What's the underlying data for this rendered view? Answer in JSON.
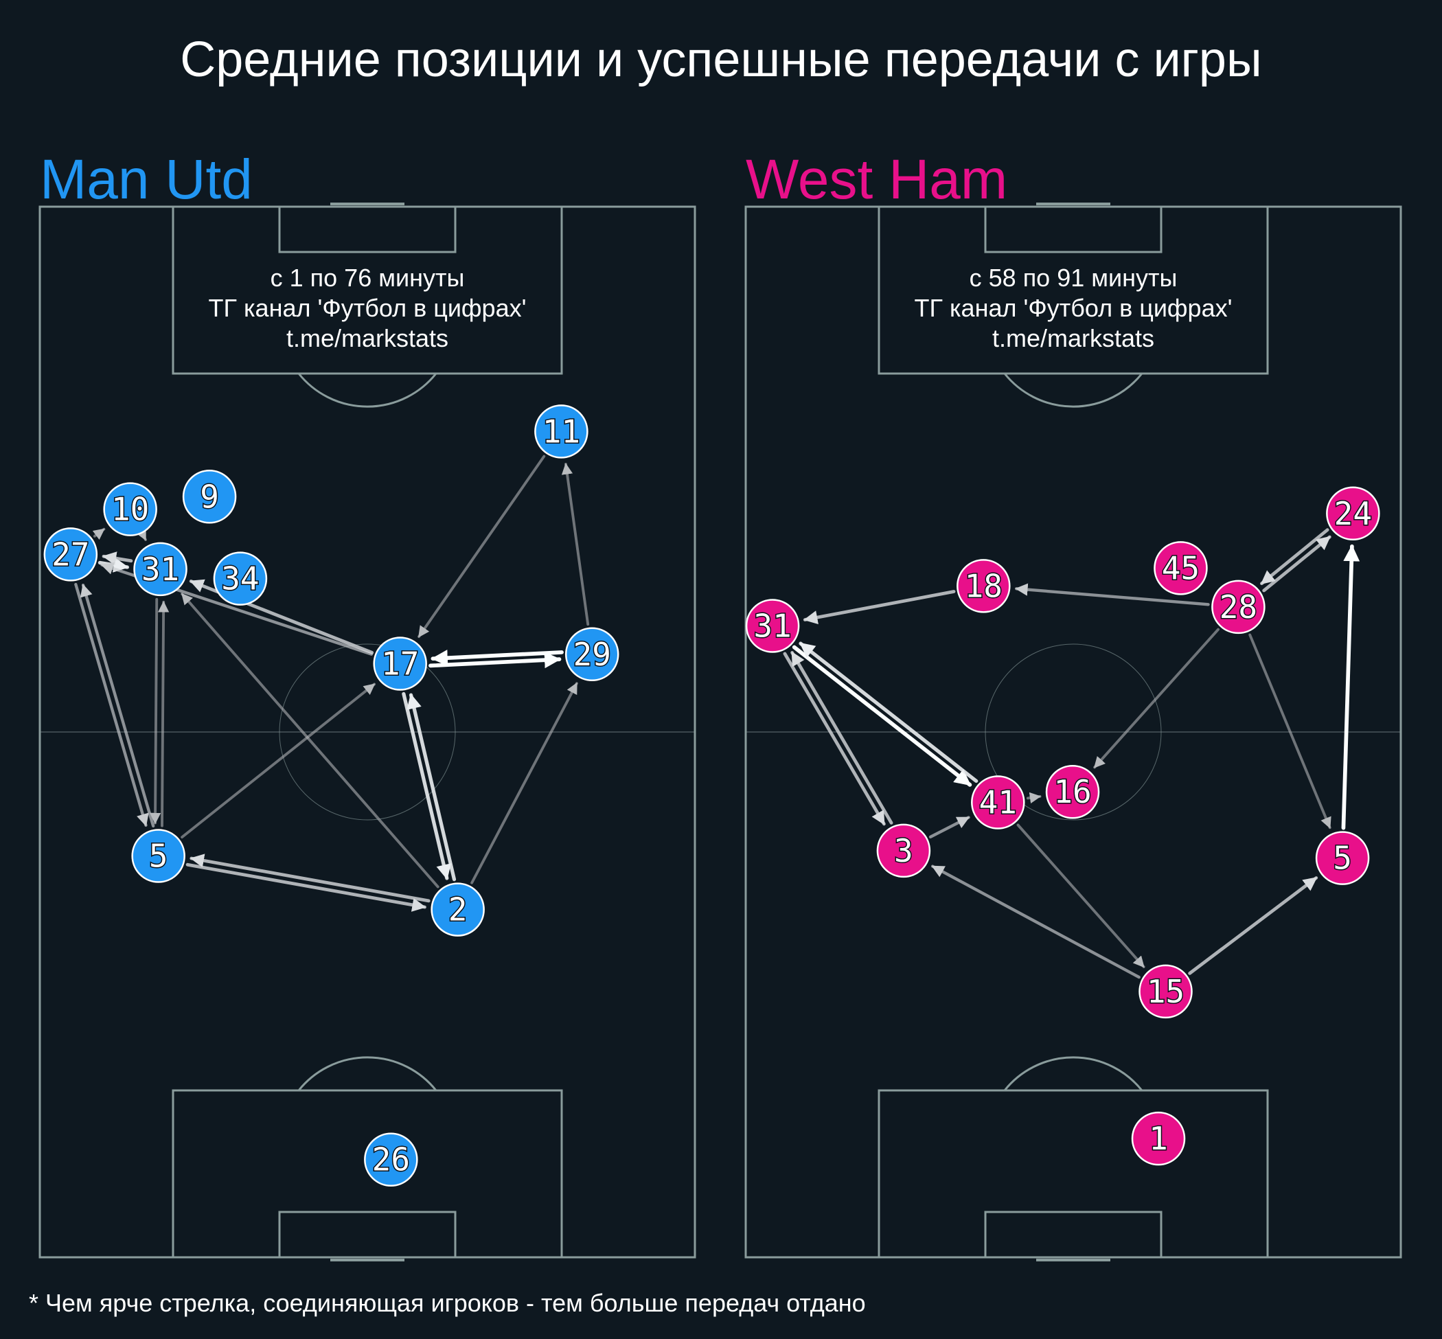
{
  "title": "Средние позиции и успешные передачи с игры",
  "footnote": "* Чем ярче стрелка, соединяющая игроков - тем больше передач отдано",
  "colors": {
    "background": "#0e1820",
    "pitch_lines": "#8a9c9c",
    "home": "#2196f3",
    "away": "#e8108a"
  },
  "teams": [
    {
      "name": "Man Utd",
      "color": "#2196f3",
      "info": [
        "с 1 по 76 минуты",
        "ТГ канал 'Футбол в цифрах'",
        "t.me/markstats"
      ],
      "players": [
        {
          "num": "10",
          "x": 13.8,
          "y": 28.8
        },
        {
          "num": "9",
          "x": 25.9,
          "y": 27.6
        },
        {
          "num": "11",
          "x": 79.6,
          "y": 21.4
        },
        {
          "num": "27",
          "x": 4.7,
          "y": 33.1
        },
        {
          "num": "31",
          "x": 18.4,
          "y": 34.5
        },
        {
          "num": "34",
          "x": 30.6,
          "y": 35.4
        },
        {
          "num": "17",
          "x": 55.0,
          "y": 43.5
        },
        {
          "num": "29",
          "x": 84.3,
          "y": 42.6
        },
        {
          "num": "5",
          "x": 18.1,
          "y": 61.8
        },
        {
          "num": "2",
          "x": 63.8,
          "y": 66.9
        },
        {
          "num": "26",
          "x": 53.6,
          "y": 90.7
        }
      ],
      "passes": [
        {
          "from": "27",
          "to": "10",
          "count": 2
        },
        {
          "from": "10",
          "to": "31",
          "count": 2
        },
        {
          "from": "27",
          "to": "31",
          "count": 5
        },
        {
          "from": "31",
          "to": "27",
          "count": 4
        },
        {
          "from": "17",
          "to": "27",
          "count": 3
        },
        {
          "from": "17",
          "to": "31",
          "count": 4
        },
        {
          "from": "27",
          "to": "5",
          "count": 3
        },
        {
          "from": "5",
          "to": "27",
          "count": 3
        },
        {
          "from": "5",
          "to": "31",
          "count": 2
        },
        {
          "from": "31",
          "to": "5",
          "count": 2
        },
        {
          "from": "5",
          "to": "17",
          "count": 2
        },
        {
          "from": "2",
          "to": "31",
          "count": 2
        },
        {
          "from": "5",
          "to": "2",
          "count": 4
        },
        {
          "from": "2",
          "to": "5",
          "count": 4
        },
        {
          "from": "2",
          "to": "17",
          "count": 5
        },
        {
          "from": "17",
          "to": "2",
          "count": 5
        },
        {
          "from": "2",
          "to": "29",
          "count": 2
        },
        {
          "from": "11",
          "to": "17",
          "count": 2
        },
        {
          "from": "29",
          "to": "11",
          "count": 2
        },
        {
          "from": "17",
          "to": "29",
          "count": 6
        },
        {
          "from": "29",
          "to": "17",
          "count": 6
        }
      ]
    },
    {
      "name": "West Ham",
      "color": "#e8108a",
      "info": [
        "с 58 по 91 минуты",
        "ТГ канал 'Футбол в цифрах'",
        "t.me/markstats"
      ],
      "players": [
        {
          "num": "24",
          "x": 92.7,
          "y": 29.2
        },
        {
          "num": "45",
          "x": 66.4,
          "y": 34.4
        },
        {
          "num": "18",
          "x": 36.3,
          "y": 36.1
        },
        {
          "num": "28",
          "x": 75.2,
          "y": 38.1
        },
        {
          "num": "31",
          "x": 4.1,
          "y": 39.9
        },
        {
          "num": "16",
          "x": 49.9,
          "y": 55.7
        },
        {
          "num": "41",
          "x": 38.5,
          "y": 56.7
        },
        {
          "num": "3",
          "x": 24.1,
          "y": 61.3
        },
        {
          "num": "5",
          "x": 91.1,
          "y": 62.0
        },
        {
          "num": "15",
          "x": 64.1,
          "y": 74.7
        },
        {
          "num": "1",
          "x": 63.0,
          "y": 88.7
        }
      ],
      "passes": [
        {
          "from": "28",
          "to": "24",
          "count": 4
        },
        {
          "from": "24",
          "to": "28",
          "count": 4
        },
        {
          "from": "18",
          "to": "31",
          "count": 4
        },
        {
          "from": "28",
          "to": "18",
          "count": 3
        },
        {
          "from": "31",
          "to": "41",
          "count": 6
        },
        {
          "from": "41",
          "to": "31",
          "count": 5
        },
        {
          "from": "31",
          "to": "3",
          "count": 4
        },
        {
          "from": "3",
          "to": "31",
          "count": 4
        },
        {
          "from": "3",
          "to": "41",
          "count": 3
        },
        {
          "from": "41",
          "to": "16",
          "count": 2
        },
        {
          "from": "28",
          "to": "16",
          "count": 2
        },
        {
          "from": "28",
          "to": "5",
          "count": 2
        },
        {
          "from": "41",
          "to": "15",
          "count": 2
        },
        {
          "from": "15",
          "to": "3",
          "count": 3
        },
        {
          "from": "15",
          "to": "5",
          "count": 4
        },
        {
          "from": "5",
          "to": "24",
          "count": 6
        }
      ]
    }
  ]
}
